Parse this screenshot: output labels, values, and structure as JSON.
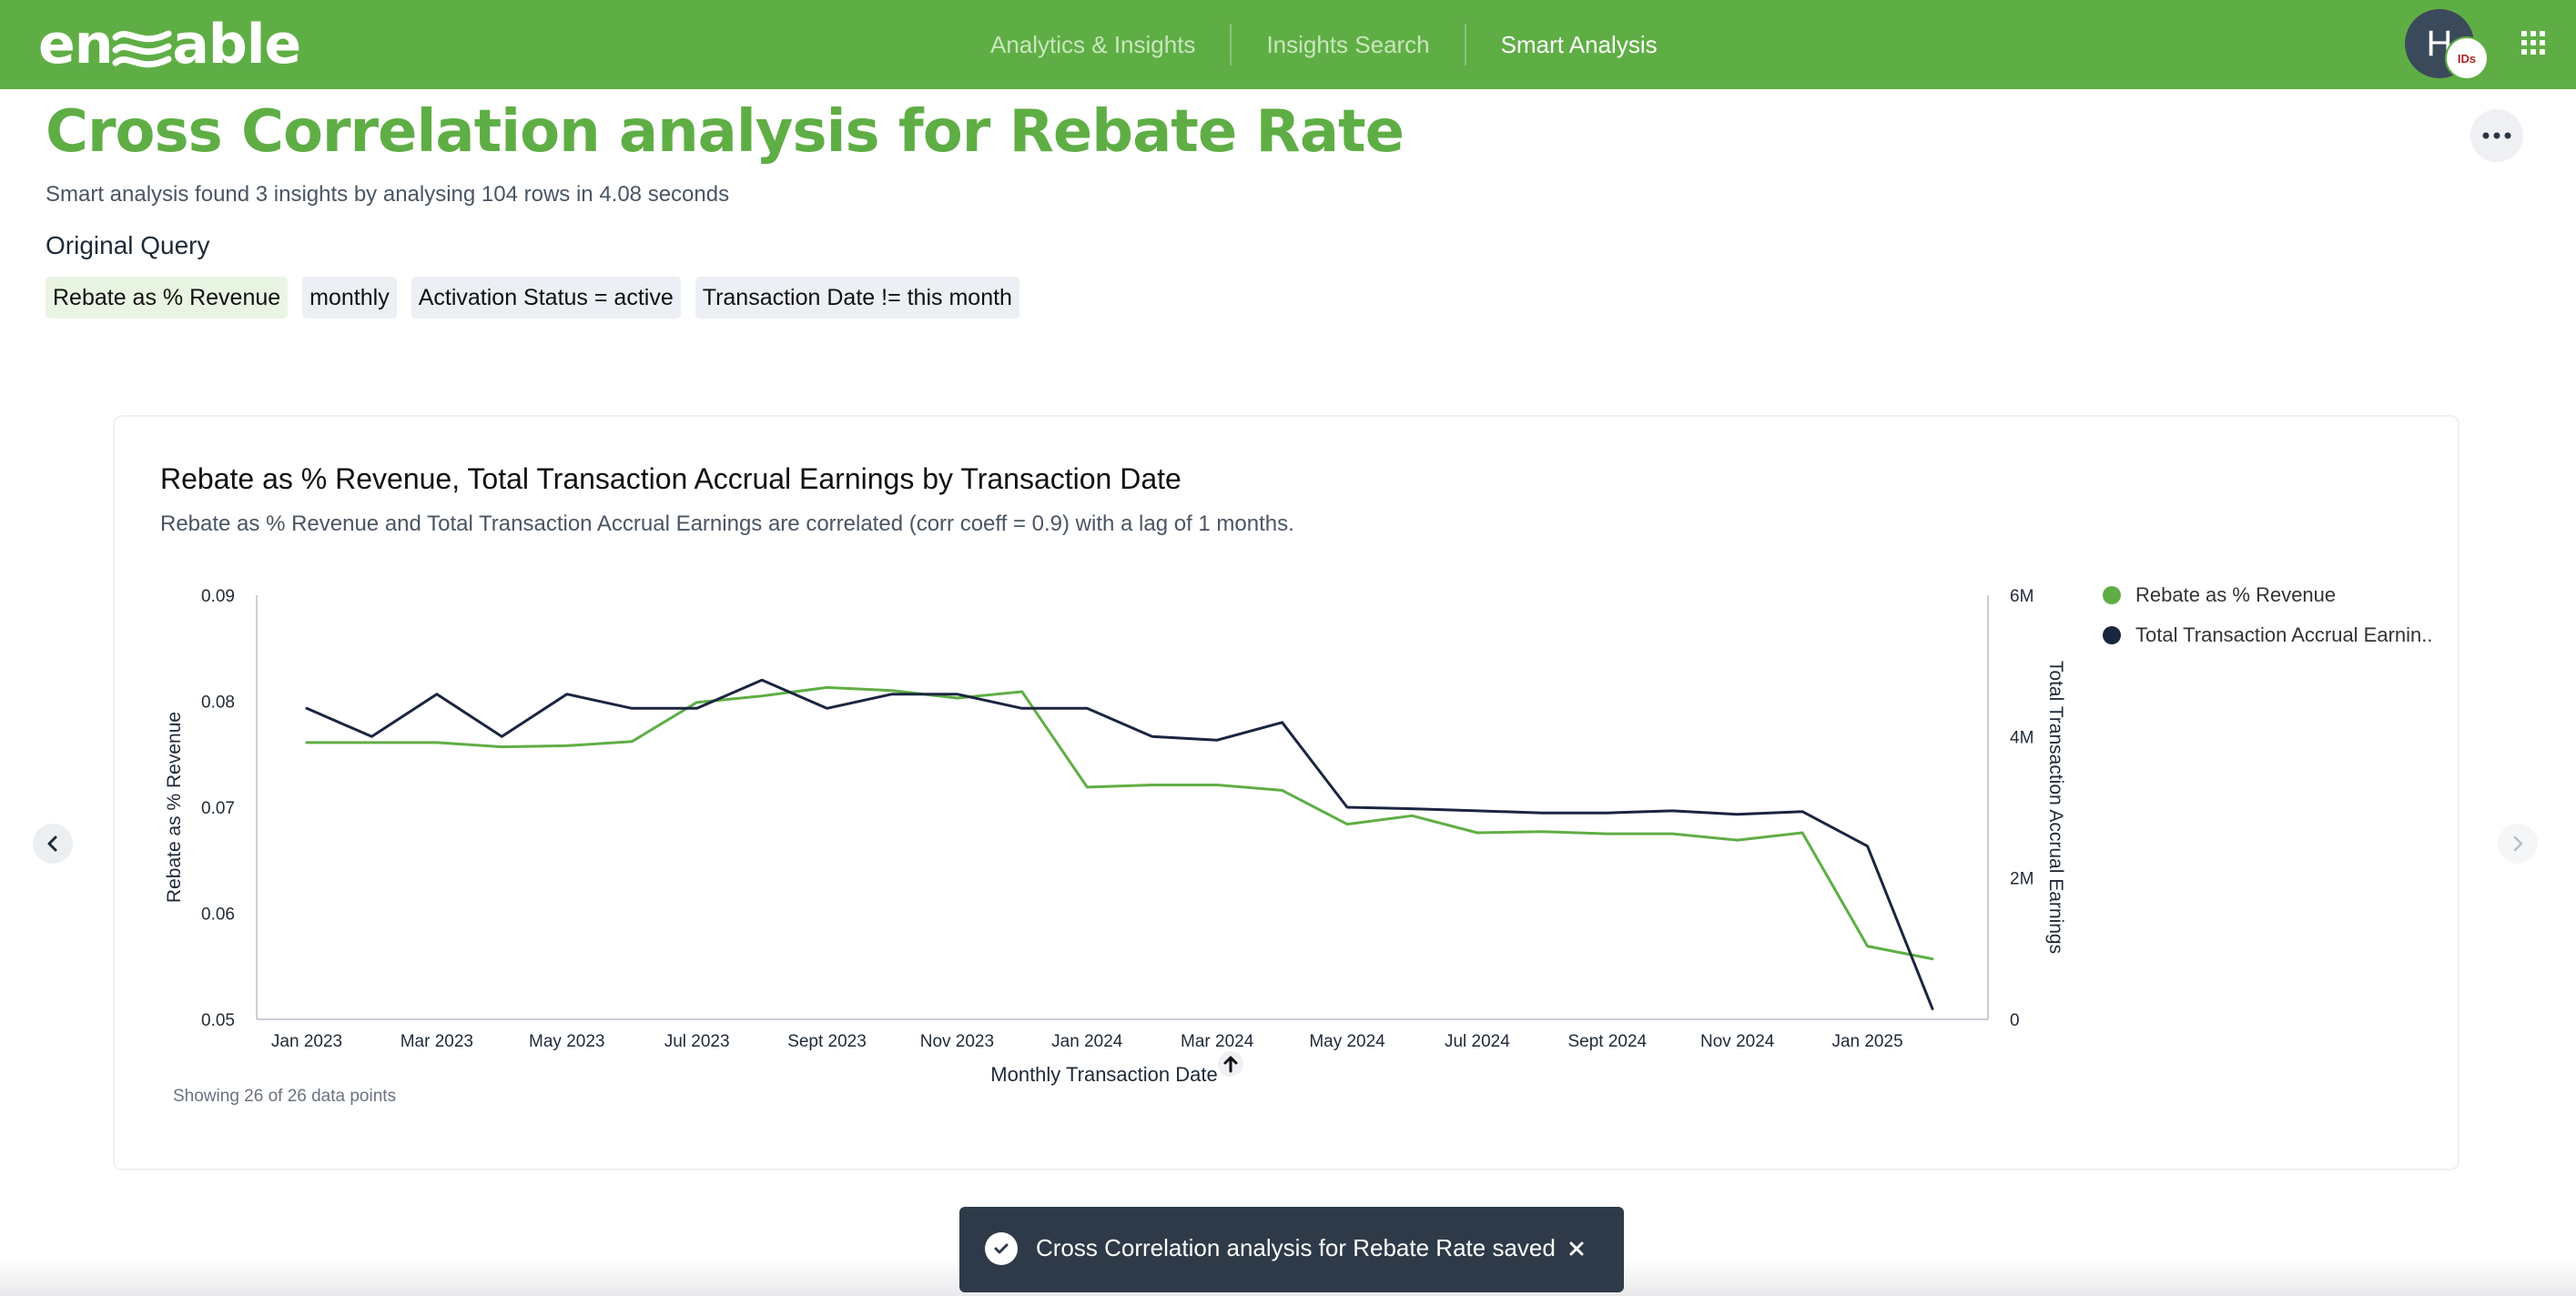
{
  "app": {
    "logo_text_left": "en",
    "logo_text_right": "able"
  },
  "nav": {
    "items": [
      {
        "label": "Analytics & Insights",
        "active": false
      },
      {
        "label": "Insights Search",
        "active": false
      },
      {
        "label": "Smart Analysis",
        "active": true
      }
    ]
  },
  "user": {
    "avatar_initial": "H",
    "badge_text": "IDs"
  },
  "page": {
    "title": "Cross Correlation analysis for Rebate Rate",
    "summary": "Smart analysis found 3 insights by analysing 104 rows in 4.08 seconds",
    "original_query_label": "Original Query",
    "chips": [
      "Rebate as % Revenue",
      "monthly",
      "Activation Status = active",
      "Transaction Date != this month"
    ]
  },
  "card": {
    "title": "Rebate as % Revenue, Total Transaction Accrual Earnings by Transaction Date",
    "subtitle": "Rebate as % Revenue and Total Transaction Accrual Earnings are correlated (corr coeff = 0.9) with a lag of 1 months.",
    "points_note": "Showing 26 of 26 data points",
    "sort_icon": "arrow-up-icon"
  },
  "chart_data": {
    "type": "line",
    "xlabel": "Monthly Transaction Date",
    "ylabel": "Rebate as % Revenue",
    "y2label": "Total Transaction Accrual Earnings",
    "ylim": [
      0.05,
      0.09
    ],
    "y2lim": [
      0,
      6000000
    ],
    "y_ticks": [
      "0.05",
      "0.06",
      "0.07",
      "0.08",
      "0.09"
    ],
    "y2_ticks": [
      "0",
      "2M",
      "4M",
      "6M"
    ],
    "x_tick_labels": [
      "Jan 2023",
      "Mar 2023",
      "May 2023",
      "Jul 2023",
      "Sept 2023",
      "Nov 2023",
      "Jan 2024",
      "Mar 2024",
      "May 2024",
      "Jul 2024",
      "Sept 2024",
      "Nov 2024",
      "Jan 2025"
    ],
    "x": [
      "Jan 2023",
      "Feb 2023",
      "Mar 2023",
      "Apr 2023",
      "May 2023",
      "Jun 2023",
      "Jul 2023",
      "Aug 2023",
      "Sept 2023",
      "Oct 2023",
      "Nov 2023",
      "Dec 2023",
      "Jan 2024",
      "Feb 2024",
      "Mar 2024",
      "Apr 2024",
      "May 2024",
      "Jun 2024",
      "Jul 2024",
      "Aug 2024",
      "Sept 2024",
      "Oct 2024",
      "Nov 2024",
      "Dec 2024",
      "Jan 2025",
      "Feb 2025"
    ],
    "legend_position": "right",
    "grid": false,
    "series": [
      {
        "name": "Rebate as % Revenue",
        "axis": "left",
        "color": "#5fae45",
        "values": [
          0.0761,
          0.0761,
          0.0761,
          0.0757,
          0.0758,
          0.0762,
          0.0799,
          0.0805,
          0.0813,
          0.081,
          0.0803,
          0.0809,
          0.0719,
          0.0721,
          0.0721,
          0.0716,
          0.0684,
          0.0692,
          0.0676,
          0.0677,
          0.0675,
          0.0675,
          0.0669,
          0.0676,
          0.0569,
          0.0557
        ]
      },
      {
        "name": "Total Transaction Accrual Earnings",
        "legend_label": "Total Transaction Accrual Earnin..",
        "axis": "right",
        "color": "#1a2540",
        "values": [
          4400000,
          4000000,
          4600000,
          4000000,
          4600000,
          4400000,
          4400000,
          4800000,
          4400000,
          4600000,
          4600000,
          4400000,
          4400000,
          4000000,
          3950000,
          4200000,
          3000000,
          2980000,
          2950000,
          2920000,
          2920000,
          2950000,
          2900000,
          2940000,
          2450000,
          150000
        ]
      }
    ]
  },
  "toast": {
    "message": "Cross Correlation analysis for Rebate Rate saved"
  }
}
